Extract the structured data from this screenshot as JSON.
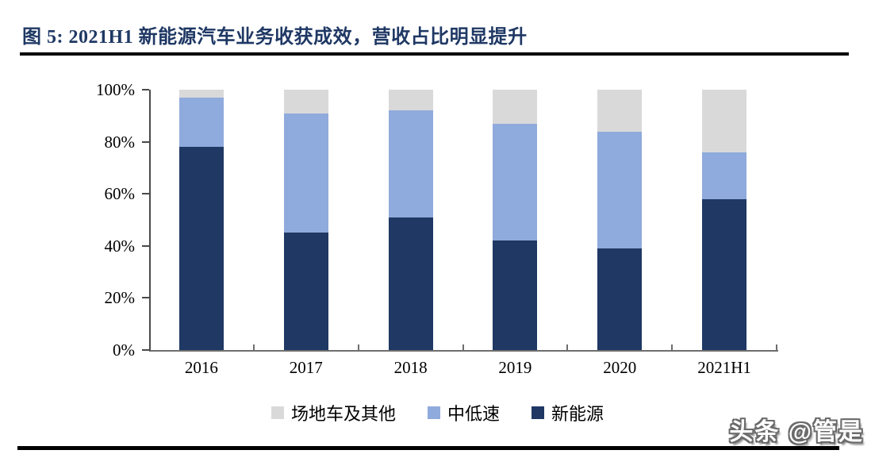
{
  "header": {
    "title": "图 5:  2021H1 新能源汽车业务收获成效，营收占比明显提升",
    "title_color": "#1F3864"
  },
  "chart_data": {
    "type": "bar",
    "stacked": true,
    "percent_stacked": true,
    "categories": [
      "2016",
      "2017",
      "2018",
      "2019",
      "2020",
      "2021H1"
    ],
    "series": [
      {
        "name": "新能源",
        "color": "#1F3864",
        "values": [
          78,
          45,
          51,
          42,
          39,
          58
        ]
      },
      {
        "name": "中低速",
        "color": "#8FAADC",
        "values": [
          19,
          46,
          41,
          45,
          45,
          18
        ]
      },
      {
        "name": "场地车及其他",
        "color": "#D9D9D9",
        "values": [
          3,
          9,
          8,
          13,
          16,
          24
        ]
      }
    ],
    "title": "",
    "xlabel": "",
    "ylabel": "",
    "ylim": [
      0,
      100
    ],
    "yticks": [
      "0%",
      "20%",
      "40%",
      "60%",
      "80%",
      "100%"
    ],
    "grid": false,
    "legend_position": "bottom",
    "legend_order": [
      "场地车及其他",
      "中低速",
      "新能源"
    ]
  },
  "watermark": {
    "text": "头条 @管是"
  }
}
